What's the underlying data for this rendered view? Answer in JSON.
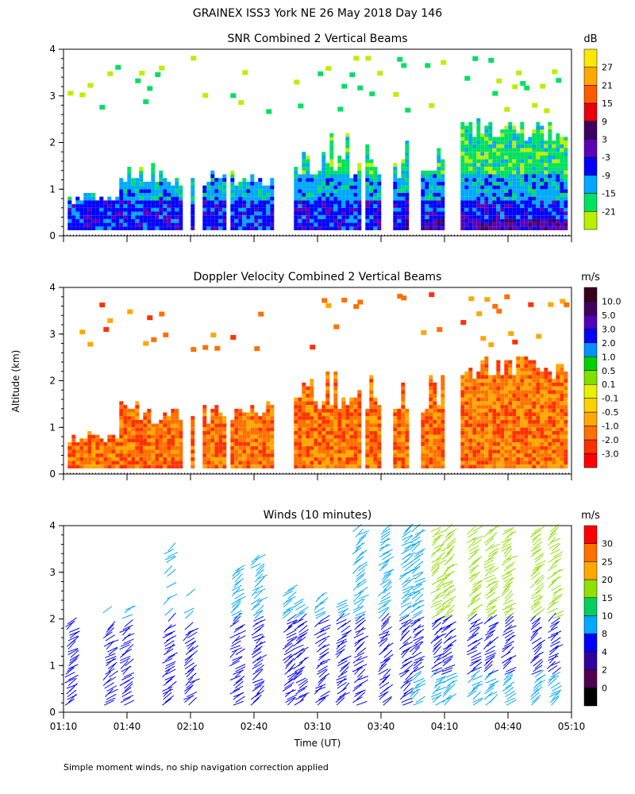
{
  "figure": {
    "title": "GRAINEX ISS3 York NE  26 May 2018 Day 146",
    "ylabel": "Altitude (km)",
    "xlabel": "Time (UT)",
    "footnote": "Simple moment winds, no ship navigation correction applied"
  },
  "chart_data": [
    {
      "type": "heatmap",
      "title": "SNR Combined 2 Vertical Beams",
      "units": "dB",
      "x_ticks": [
        "01:10",
        "01:40",
        "02:10",
        "02:40",
        "03:10",
        "03:40",
        "04:10",
        "04:40",
        "05:10"
      ],
      "y_ticks": [
        "0",
        "1",
        "2",
        "3",
        "4"
      ],
      "ylim": [
        0,
        4
      ],
      "xlim_minutes": [
        70,
        310
      ],
      "colorbar": {
        "labels": [
          "27",
          "21",
          "15",
          "9",
          "3",
          "-3",
          "-9",
          "-15",
          "-21"
        ],
        "colors": [
          "#ffe800",
          "#ffa800",
          "#ff5a00",
          "#e8000b",
          "#3c0060",
          "#5c00b8",
          "#0000ff",
          "#00a8ff",
          "#00e060",
          "#b8f000"
        ]
      }
    },
    {
      "type": "heatmap",
      "title": "Doppler Velocity Combined 2 Vertical Beams",
      "units": "m/s",
      "x_ticks": [
        "01:10",
        "01:40",
        "02:10",
        "02:40",
        "03:10",
        "03:40",
        "04:10",
        "04:40",
        "05:10"
      ],
      "y_ticks": [
        "0",
        "1",
        "2",
        "3",
        "4"
      ],
      "ylim": [
        0,
        4
      ],
      "xlim_minutes": [
        70,
        310
      ],
      "colorbar": {
        "labels": [
          "10.0",
          "5.0",
          "3.0",
          "2.0",
          "1.0",
          "0.5",
          "0.1",
          "-0.1",
          "-0.5",
          "-1.0",
          "-2.0",
          "-3.0"
        ],
        "colors": [
          "#38001c",
          "#40005c",
          "#5000b8",
          "#0000ff",
          "#0090ff",
          "#00d000",
          "#80e000",
          "#e8f000",
          "#ffd000",
          "#ffa800",
          "#ff7000",
          "#ff3000",
          "#ff0000"
        ]
      }
    },
    {
      "type": "scatter",
      "subtype": "wind-barbs",
      "title": "Winds (10 minutes)",
      "units": "m/s",
      "x_ticks": [
        "01:10",
        "01:40",
        "02:10",
        "02:40",
        "03:10",
        "03:40",
        "04:10",
        "04:40",
        "05:10"
      ],
      "y_ticks": [
        "0",
        "1",
        "2",
        "3",
        "4"
      ],
      "ylim": [
        0,
        4
      ],
      "xlim_minutes": [
        70,
        310
      ],
      "colorbar": {
        "labels": [
          "30",
          "25",
          "20",
          "15",
          "10",
          "8",
          "4",
          "2",
          "0"
        ],
        "colors": [
          "#ff0000",
          "#ff7000",
          "#ffa800",
          "#90e000",
          "#00d060",
          "#00a8ff",
          "#0000ff",
          "#3000a0",
          "#500050",
          "#000000"
        ]
      },
      "profile_times_minutes": [
        72,
        90,
        98,
        118,
        128,
        150,
        160,
        175,
        180,
        190,
        200,
        208,
        220,
        230,
        235,
        245,
        250,
        262,
        270,
        278,
        292,
        300
      ]
    }
  ]
}
